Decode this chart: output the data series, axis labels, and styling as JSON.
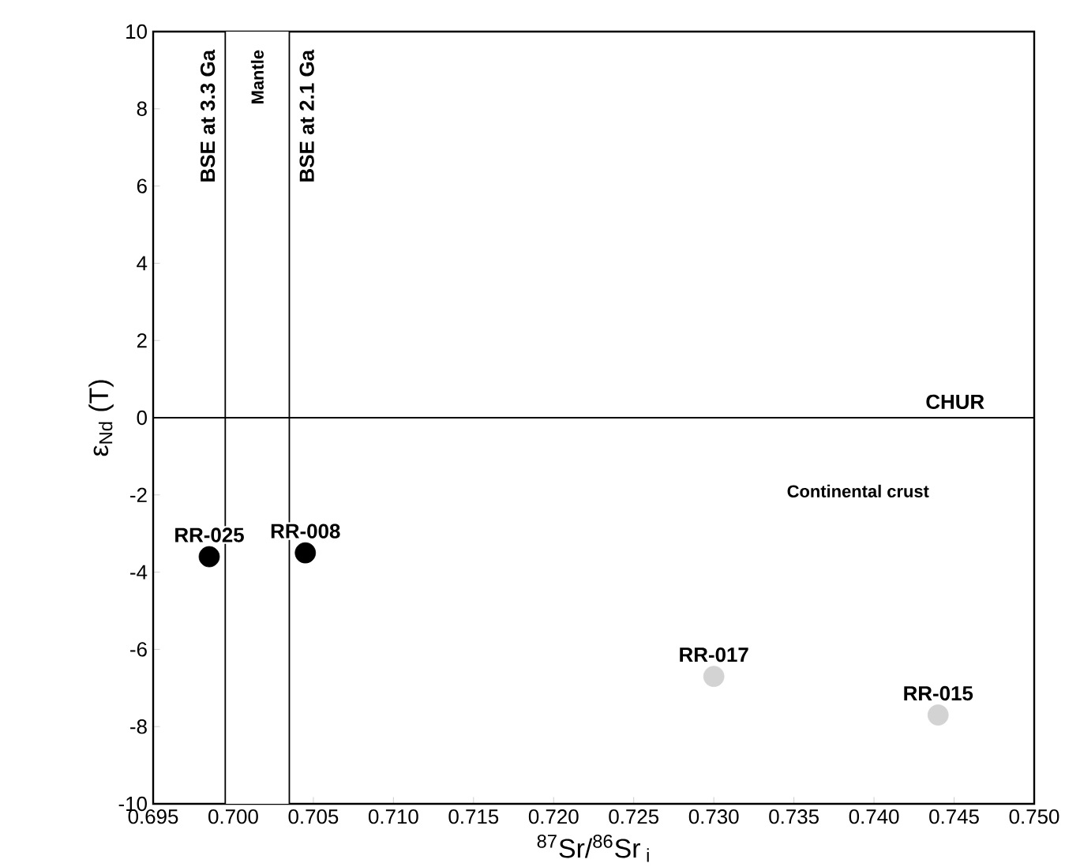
{
  "chart_data": {
    "type": "scatter",
    "xlabel": "$^{87}$Sr/$^{86}$Sr$_{ i}$",
    "ylabel": "ε$_{Nd}$ (T)",
    "xlim": [
      0.695,
      0.75
    ],
    "ylim": [
      -10,
      10
    ],
    "xticks": [
      {
        "value": 0.695,
        "label": "0.695"
      },
      {
        "value": 0.7,
        "label": "0.700"
      },
      {
        "value": 0.705,
        "label": "0.705"
      },
      {
        "value": 0.71,
        "label": "0.710"
      },
      {
        "value": 0.715,
        "label": "0.715"
      },
      {
        "value": 0.72,
        "label": "0.720"
      },
      {
        "value": 0.725,
        "label": "0.725"
      },
      {
        "value": 0.73,
        "label": "0.730"
      },
      {
        "value": 0.735,
        "label": "0.735"
      },
      {
        "value": 0.74,
        "label": "0.740"
      },
      {
        "value": 0.745,
        "label": "0.745"
      },
      {
        "value": 0.75,
        "label": "0.750"
      }
    ],
    "yticks": [
      -10,
      -8,
      -6,
      -4,
      -2,
      0,
      2,
      4,
      6,
      8,
      10
    ],
    "series": [
      {
        "color": "#000000",
        "x": [
          0.6985,
          0.7045
        ],
        "values": [
          -3.6,
          -3.5
        ]
      },
      {
        "color": "#d3d3d3",
        "x": [
          0.73,
          0.744
        ],
        "values": [
          -6.7,
          -7.7
        ]
      }
    ],
    "ref_lines": [
      {
        "axis": "x",
        "value": 0.6995,
        "label": "BSE at 3.3 Ga"
      },
      {
        "axis": "x",
        "value": 0.7035,
        "label": "BSE at 2.1 Ga"
      },
      {
        "axis": "y",
        "value": 0,
        "label": "CHUR"
      }
    ],
    "bands": [
      {
        "axis": "x",
        "from": 0.6995,
        "to": 0.7035,
        "label": "Mantle",
        "color": "#ffffff"
      }
    ],
    "annotations": [
      {
        "text": "RR-025",
        "x": 0.6985,
        "y": -3.6
      },
      {
        "text": "RR-008",
        "x": 0.7045,
        "y": -3.5
      },
      {
        "text": "RR-017",
        "x": 0.73,
        "y": -6.7
      },
      {
        "text": "RR-015",
        "x": 0.744,
        "y": -7.7
      },
      "Continental crust"
    ]
  }
}
